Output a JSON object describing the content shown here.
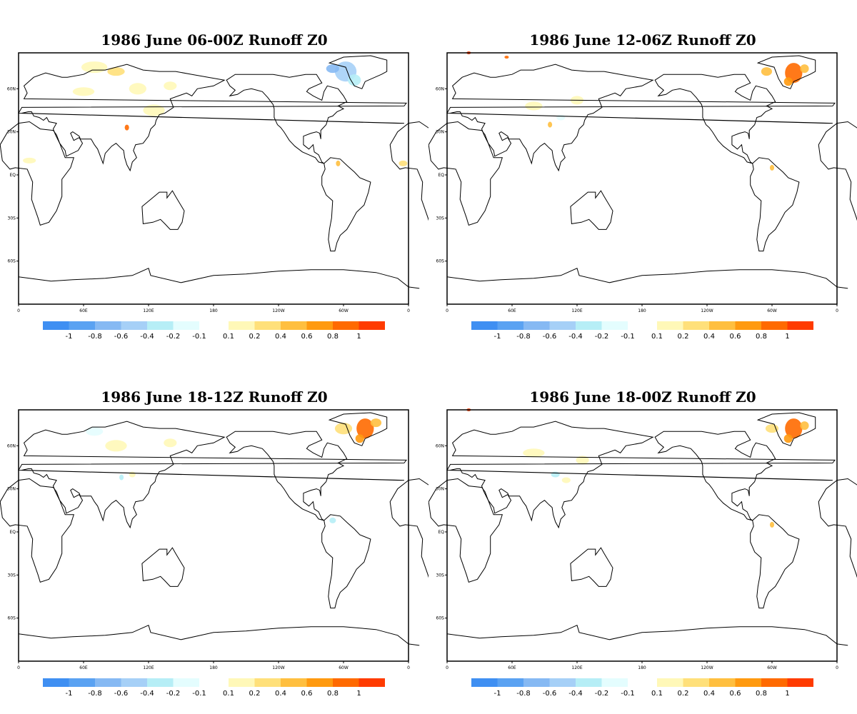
{
  "panels": [
    {
      "title": "1986 June 06-00Z Runoff Z0"
    },
    {
      "title": "1986 June 12-06Z Runoff Z0"
    },
    {
      "title": "1986 June 18-12Z Runoff Z0"
    },
    {
      "title": "1986 June 18-00Z Runoff Z0"
    }
  ],
  "axes": {
    "x_ticks": [
      "0",
      "60E",
      "120E",
      "180",
      "120W",
      "60W",
      "0"
    ],
    "y_ticks": [
      "60N",
      "30N",
      "EQ",
      "30S",
      "60S"
    ]
  },
  "colorbar": {
    "negative_colors": [
      "#3f8ff2",
      "#5aa2f2",
      "#86b9f3",
      "#a6d0f7",
      "#b6eef6",
      "#e4fdfe"
    ],
    "positive_colors": [
      "#fff8b8",
      "#ffe07a",
      "#ffbf3f",
      "#ff9a10",
      "#ff6a00",
      "#ff3b00"
    ],
    "negative_labels": [
      "-1",
      "-0.8",
      "-0.6",
      "-0.4",
      "-0.2",
      "-0.1"
    ],
    "positive_labels": [
      "0.1",
      "0.2",
      "0.4",
      "0.6",
      "0.8",
      "1"
    ]
  },
  "chart_data": {
    "type": "map",
    "variable": "Runoff Z0",
    "projection": "cylindrical equidistant",
    "lon_range": [
      0,
      360
    ],
    "lat_range": [
      -90,
      90
    ],
    "contour_levels": [
      -1,
      -0.8,
      -0.6,
      -0.4,
      -0.2,
      -0.1,
      0.1,
      0.2,
      0.4,
      0.6,
      0.8,
      1
    ]
  }
}
